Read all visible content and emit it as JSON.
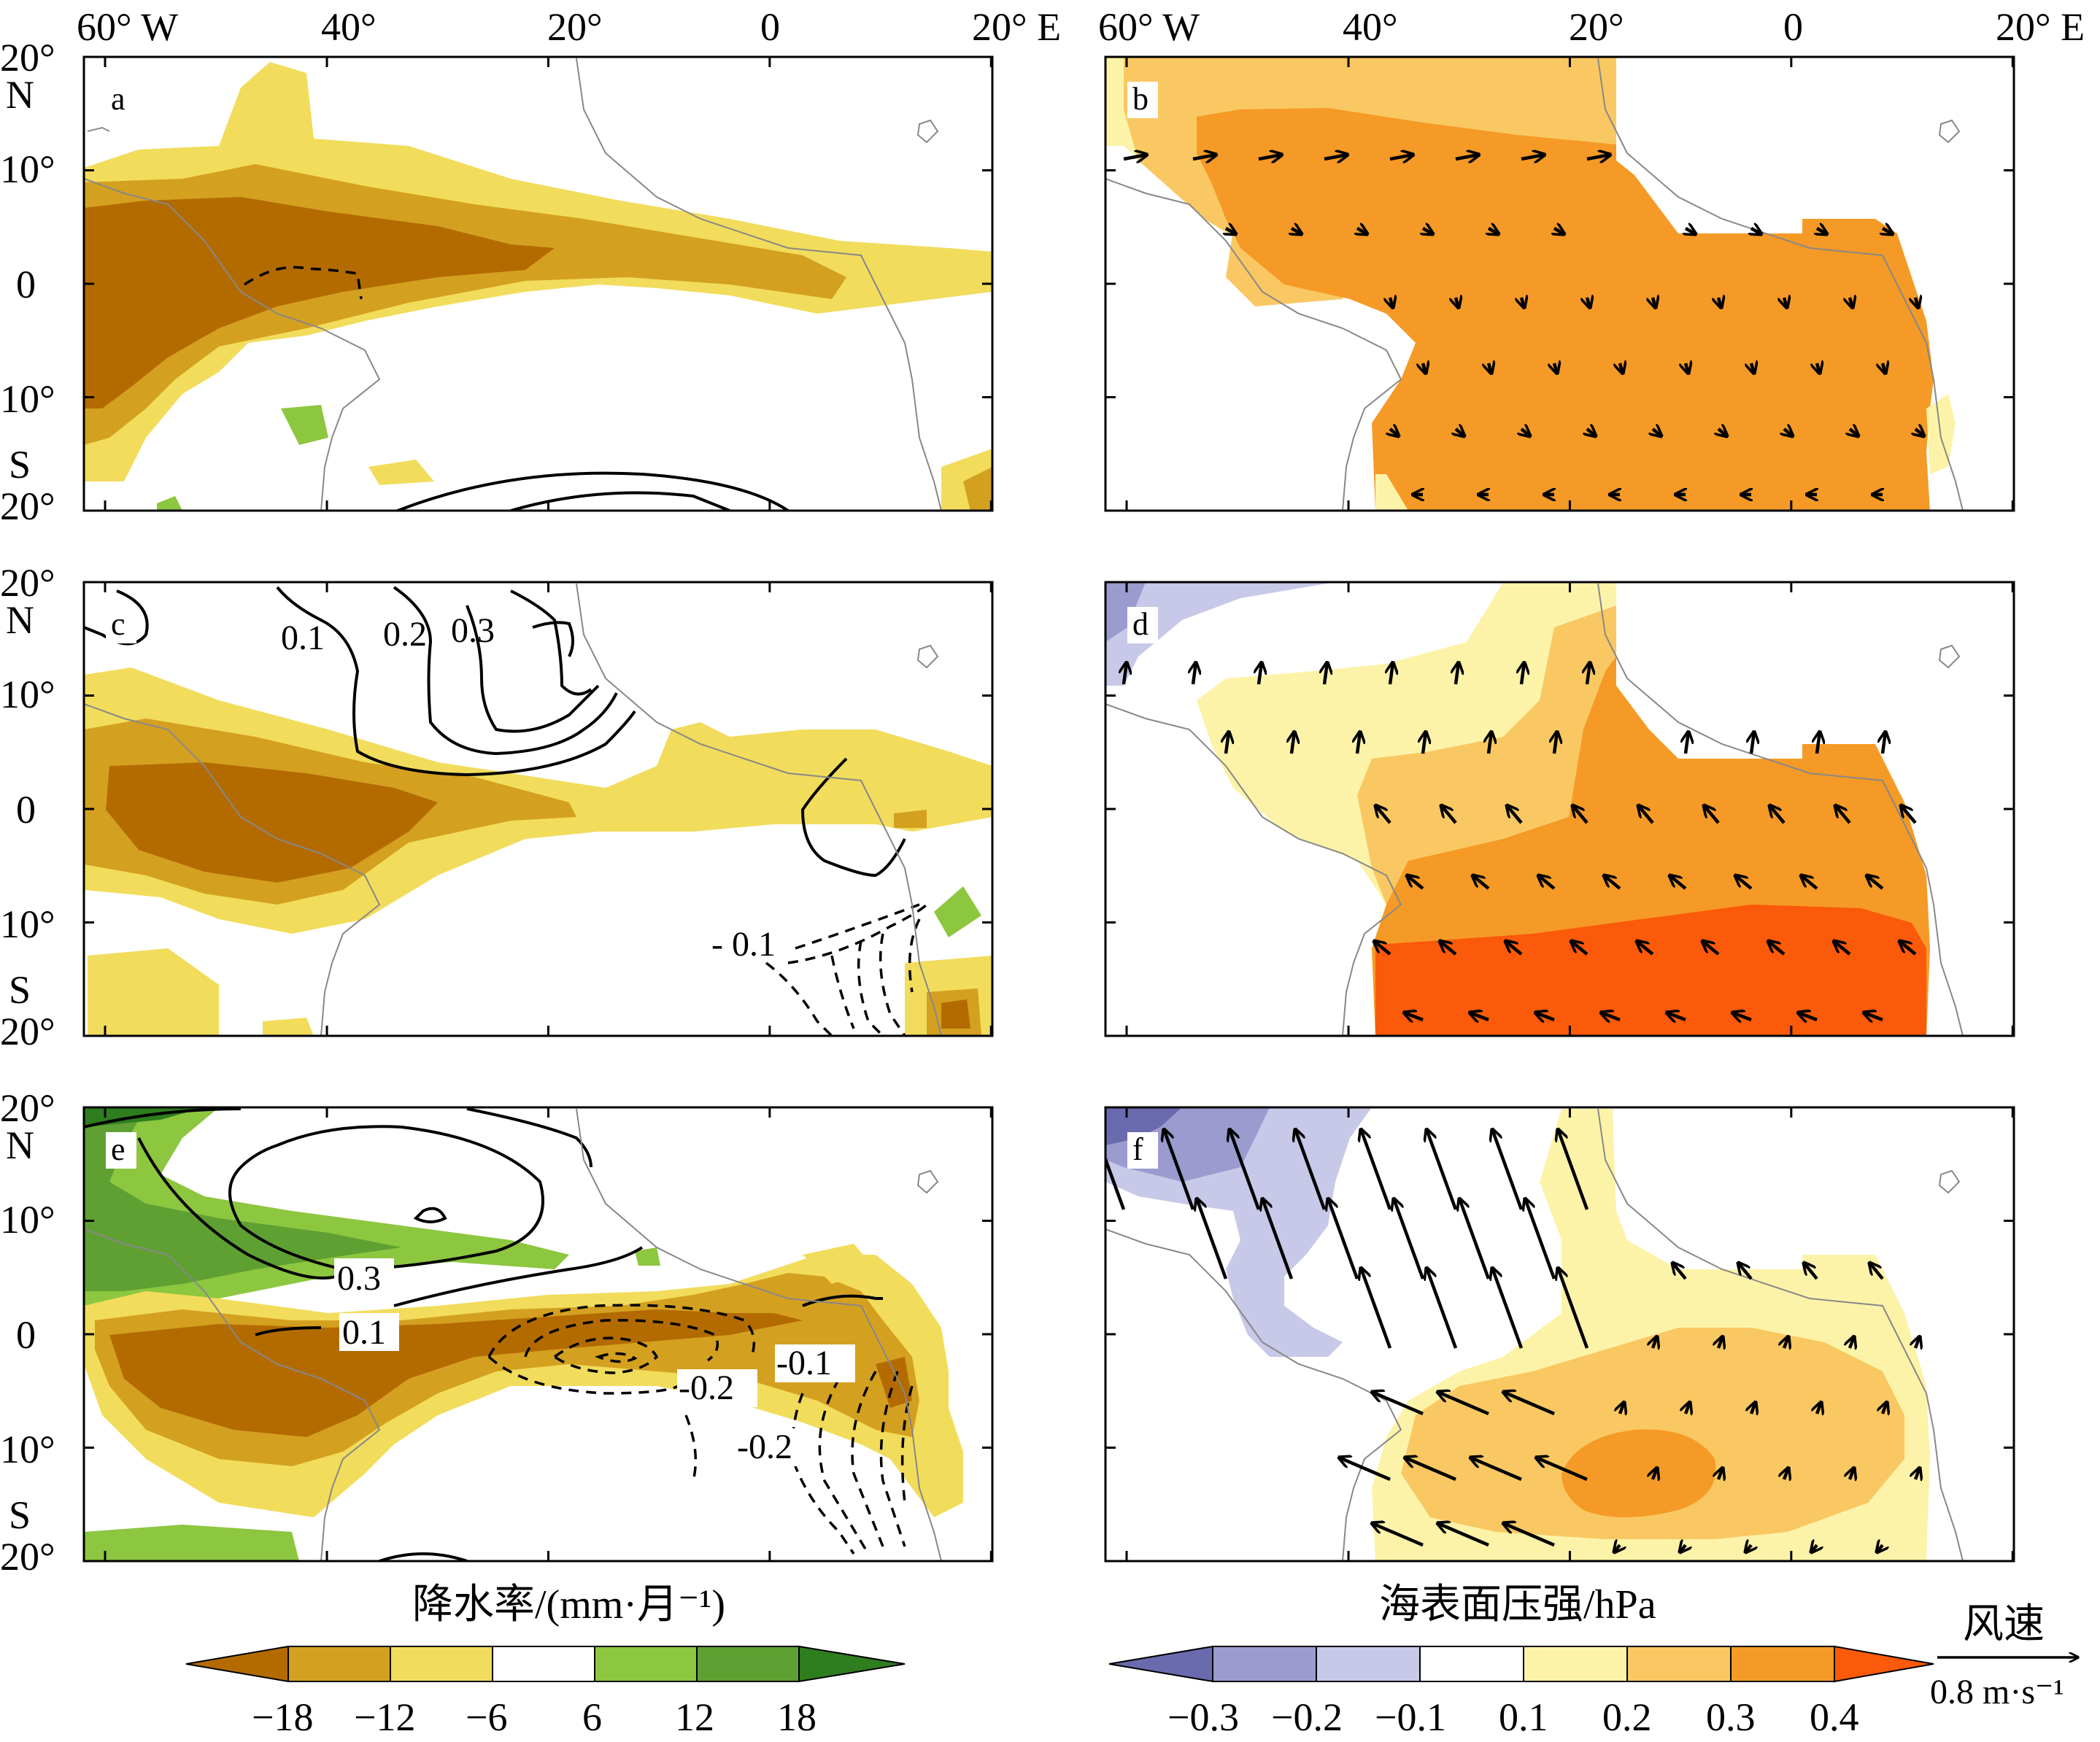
{
  "figure": {
    "lon_ticks": [
      "60° W",
      "40°",
      "20°",
      "0",
      "20° E"
    ],
    "lat_ticks_left": [
      "20°",
      "N",
      "10°",
      "0",
      "10°",
      "S",
      "20°"
    ],
    "colorbar_left": {
      "title": "降水率/(mm·月⁻¹)",
      "labels": [
        "−18",
        "−12",
        "−6",
        "6",
        "12",
        "18"
      ],
      "colors": [
        "#b36b00",
        "#d4a020",
        "#f2dc5c",
        "#ffffff",
        "#8dc63f",
        "#5fa032",
        "#2e7d1e"
      ]
    },
    "colorbar_right": {
      "title": "海表面压强/hPa",
      "labels": [
        "−0.3",
        "−0.2",
        "−0.1",
        "0.1",
        "0.2",
        "0.3",
        "0.4"
      ],
      "colors": [
        "#6a6aae",
        "#9b9bd0",
        "#c8c8e8",
        "#ffffff",
        "#fdf3a8",
        "#f9c862",
        "#f59a26",
        "#fa5a0a"
      ]
    },
    "wind_key": {
      "title": "风速",
      "value": "0.8 m·s⁻¹"
    }
  },
  "chart_data": [
    {
      "type": "heatmap",
      "panel": "a",
      "variable": "precipitation anomaly",
      "contours": [],
      "xlim": [
        -62,
        20
      ],
      "ylim": [
        -20,
        20
      ]
    },
    {
      "type": "heatmap",
      "panel": "b",
      "variable": "sea level pressure anomaly with wind vectors",
      "xlim": [
        -62,
        20
      ],
      "ylim": [
        -20,
        20
      ]
    },
    {
      "type": "heatmap",
      "panel": "c",
      "variable": "precipitation anomaly",
      "contour_labels": [
        "0.1",
        "0.2",
        "0.3",
        "- 0.1"
      ],
      "xlim": [
        -62,
        20
      ],
      "ylim": [
        -20,
        20
      ]
    },
    {
      "type": "heatmap",
      "panel": "d",
      "variable": "sea level pressure anomaly with wind vectors",
      "xlim": [
        -62,
        20
      ],
      "ylim": [
        -20,
        20
      ]
    },
    {
      "type": "heatmap",
      "panel": "e",
      "variable": "precipitation anomaly",
      "contour_labels": [
        "0.3",
        "0.1",
        "-0.2",
        "-0.1",
        "-0.2"
      ],
      "xlim": [
        -62,
        20
      ],
      "ylim": [
        -20,
        20
      ]
    },
    {
      "type": "heatmap",
      "panel": "f",
      "variable": "sea level pressure anomaly with wind vectors",
      "xlim": [
        -62,
        20
      ],
      "ylim": [
        -20,
        20
      ]
    }
  ],
  "panels": [
    "a",
    "b",
    "c",
    "d",
    "e",
    "f"
  ]
}
